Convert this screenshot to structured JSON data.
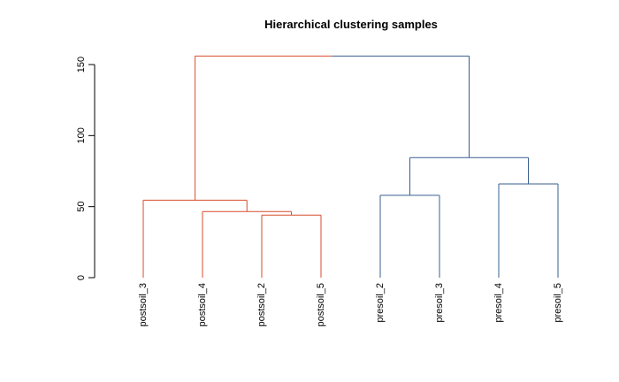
{
  "chart_data": {
    "type": "dendrogram",
    "title": "Hierarchical clustering samples",
    "xlabel": "",
    "ylabel": "",
    "ylim": [
      0,
      155
    ],
    "yticks": [
      0,
      50,
      100,
      150
    ],
    "ytick_labels": [
      "0",
      "50",
      "100",
      "150"
    ],
    "leaves": [
      "postsoil_3",
      "postsoil_4",
      "postsoil_2",
      "postsoil_5",
      "presoil_2",
      "presoil_3",
      "presoil_4",
      "presoil_5"
    ],
    "merges": [
      {
        "id": "m1",
        "left": "postsoil_2",
        "right": "postsoil_5",
        "height": 44
      },
      {
        "id": "m2",
        "left": "postsoil_4",
        "right": "m1",
        "height": 46.5
      },
      {
        "id": "m3",
        "left": "postsoil_3",
        "right": "m2",
        "height": 54.5
      },
      {
        "id": "m4",
        "left": "presoil_2",
        "right": "presoil_3",
        "height": 58
      },
      {
        "id": "m5",
        "left": "presoil_4",
        "right": "presoil_5",
        "height": 66
      },
      {
        "id": "m6",
        "left": "m4",
        "right": "m5",
        "height": 84.5
      },
      {
        "id": "m7",
        "left": "m3",
        "right": "m6",
        "height": 156
      }
    ],
    "clusters": [
      {
        "leaves": [
          "postsoil_3",
          "postsoil_4",
          "postsoil_2",
          "postsoil_5"
        ],
        "color": "#d94b2b"
      },
      {
        "leaves": [
          "presoil_2",
          "presoil_3",
          "presoil_4",
          "presoil_5"
        ],
        "color": "#3a5f8f"
      }
    ],
    "default_color": "#000000",
    "grid": false
  }
}
